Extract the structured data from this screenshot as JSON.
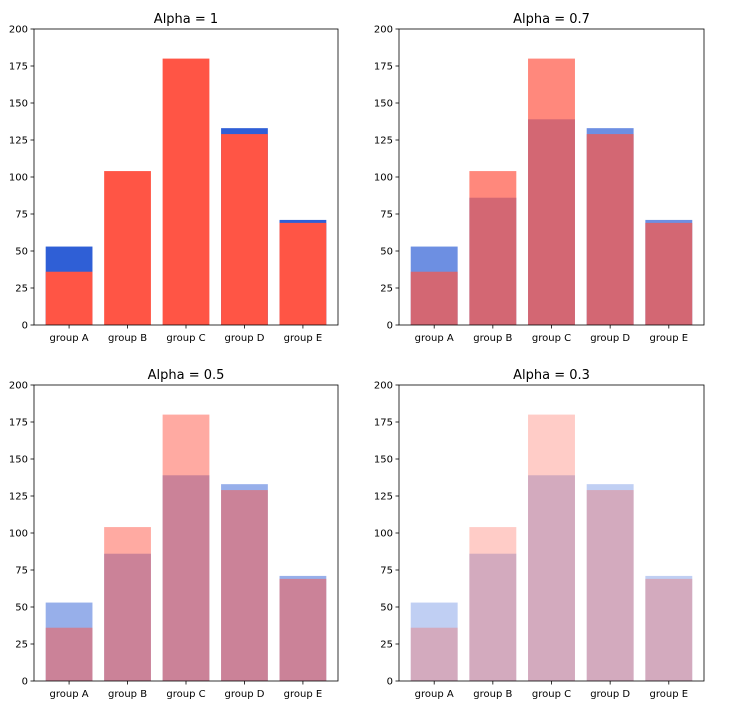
{
  "chart_data": [
    {
      "type": "bar",
      "title": "Alpha = 1",
      "alpha": 1,
      "categories": [
        "group A",
        "group B",
        "group C",
        "group D",
        "group E"
      ],
      "series": [
        {
          "name": "blue",
          "color": "#2f5fd6",
          "values": [
            53,
            0,
            0,
            133,
            71
          ]
        },
        {
          "name": "red",
          "color": "#ff5545",
          "values": [
            36,
            104,
            180,
            129,
            69
          ]
        }
      ],
      "ylim": [
        0,
        200
      ],
      "yticks": [
        0,
        25,
        50,
        75,
        100,
        125,
        150,
        175,
        200
      ],
      "xlabel": "",
      "ylabel": ""
    },
    {
      "type": "bar",
      "title": "Alpha = 0.7",
      "alpha": 0.7,
      "categories": [
        "group A",
        "group B",
        "group C",
        "group D",
        "group E"
      ],
      "series": [
        {
          "name": "blue",
          "color": "#2f5fd6",
          "values": [
            53,
            86,
            139,
            133,
            71
          ]
        },
        {
          "name": "red",
          "color": "#ff5545",
          "values": [
            36,
            104,
            180,
            129,
            69
          ]
        }
      ],
      "ylim": [
        0,
        200
      ],
      "yticks": [
        0,
        25,
        50,
        75,
        100,
        125,
        150,
        175,
        200
      ],
      "xlabel": "",
      "ylabel": ""
    },
    {
      "type": "bar",
      "title": "Alpha = 0.5",
      "alpha": 0.5,
      "categories": [
        "group A",
        "group B",
        "group C",
        "group D",
        "group E"
      ],
      "series": [
        {
          "name": "blue",
          "color": "#2f5fd6",
          "values": [
            53,
            86,
            139,
            133,
            71
          ]
        },
        {
          "name": "red",
          "color": "#ff5545",
          "values": [
            36,
            104,
            180,
            129,
            69
          ]
        }
      ],
      "ylim": [
        0,
        200
      ],
      "yticks": [
        0,
        25,
        50,
        75,
        100,
        125,
        150,
        175,
        200
      ],
      "xlabel": "",
      "ylabel": ""
    },
    {
      "type": "bar",
      "title": "Alpha = 0.3",
      "alpha": 0.3,
      "categories": [
        "group A",
        "group B",
        "group C",
        "group D",
        "group E"
      ],
      "series": [
        {
          "name": "blue",
          "color": "#2f5fd6",
          "values": [
            53,
            86,
            139,
            133,
            71
          ]
        },
        {
          "name": "red",
          "color": "#ff5545",
          "values": [
            36,
            104,
            180,
            129,
            69
          ]
        }
      ],
      "ylim": [
        0,
        200
      ],
      "yticks": [
        0,
        25,
        50,
        75,
        100,
        125,
        150,
        175,
        200
      ],
      "xlabel": "",
      "ylabel": ""
    }
  ]
}
